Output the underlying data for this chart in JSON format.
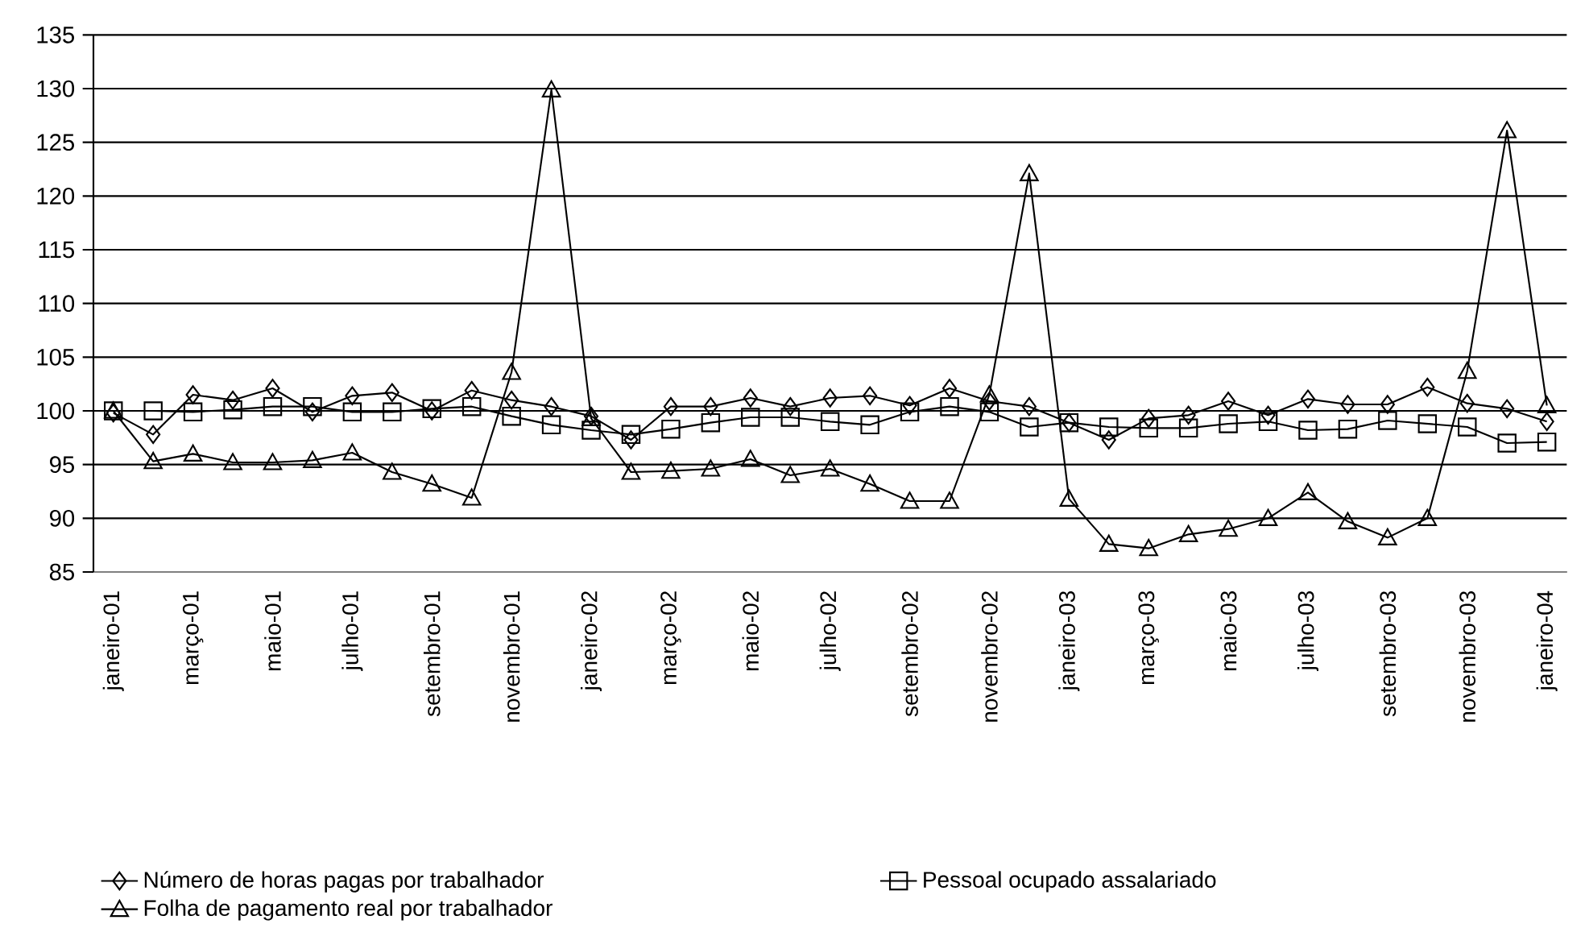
{
  "chart_data": {
    "type": "line",
    "categories": [
      "janeiro-01",
      null,
      "março-01",
      null,
      "maio-01",
      null,
      "julho-01",
      null,
      "setembro-01",
      null,
      "novembro-01",
      null,
      "janeiro-02",
      null,
      "março-02",
      null,
      "maio-02",
      null,
      "julho-02",
      null,
      "setembro-02",
      null,
      "novembro-02",
      null,
      "janeiro-03",
      null,
      "março-03",
      null,
      "maio-03",
      null,
      "julho-03",
      null,
      "setembro-03",
      null,
      "novembro-03",
      null,
      "janeiro-04"
    ],
    "series": [
      {
        "name": "Número de horas pagas por trabalhador",
        "color": "#000000",
        "marker": "diamond",
        "values": [
          99.8,
          97.8,
          101.5,
          101.0,
          102.1,
          99.9,
          101.4,
          101.7,
          100.0,
          101.9,
          101.0,
          100.4,
          99.5,
          97.3,
          100.4,
          100.4,
          101.2,
          100.4,
          101.2,
          101.4,
          100.5,
          102.1,
          100.9,
          100.4,
          98.9,
          97.3,
          99.3,
          99.6,
          100.9,
          99.6,
          101.1,
          100.6,
          100.6,
          102.2,
          100.7,
          100.2,
          99.0
        ]
      },
      {
        "name": "Folha de pagamento real por trabalhador",
        "color": "#000000",
        "marker": "triangle",
        "values": [
          100.0,
          95.3,
          96.0,
          95.2,
          95.2,
          95.4,
          96.1,
          94.3,
          93.2,
          91.9,
          103.6,
          129.9,
          99.3,
          94.3,
          94.4,
          94.6,
          95.5,
          94.0,
          94.6,
          93.2,
          91.6,
          91.6,
          101.5,
          122.1,
          91.8,
          87.6,
          87.2,
          88.5,
          89.0,
          90.0,
          92.4,
          89.7,
          88.2,
          90.0,
          103.7,
          126.1,
          100.5
        ]
      },
      {
        "name": "Pessoal ocupado assalariado",
        "color": "#000000",
        "marker": "square",
        "values": [
          100.0,
          100.0,
          99.9,
          100.1,
          100.4,
          100.4,
          99.9,
          99.9,
          100.2,
          100.4,
          99.5,
          98.7,
          98.2,
          97.8,
          98.3,
          98.9,
          99.4,
          99.4,
          99.0,
          98.7,
          99.9,
          100.4,
          99.9,
          98.5,
          98.9,
          98.5,
          98.4,
          98.4,
          98.8,
          99.0,
          98.2,
          98.3,
          99.1,
          98.8,
          98.5,
          97.0,
          97.1
        ]
      }
    ],
    "ylim": [
      85,
      135
    ],
    "yticks": [
      85,
      90,
      95,
      100,
      105,
      110,
      115,
      120,
      125,
      130,
      135
    ],
    "grid": "y",
    "legend": "bottom",
    "line_style": "solid"
  }
}
